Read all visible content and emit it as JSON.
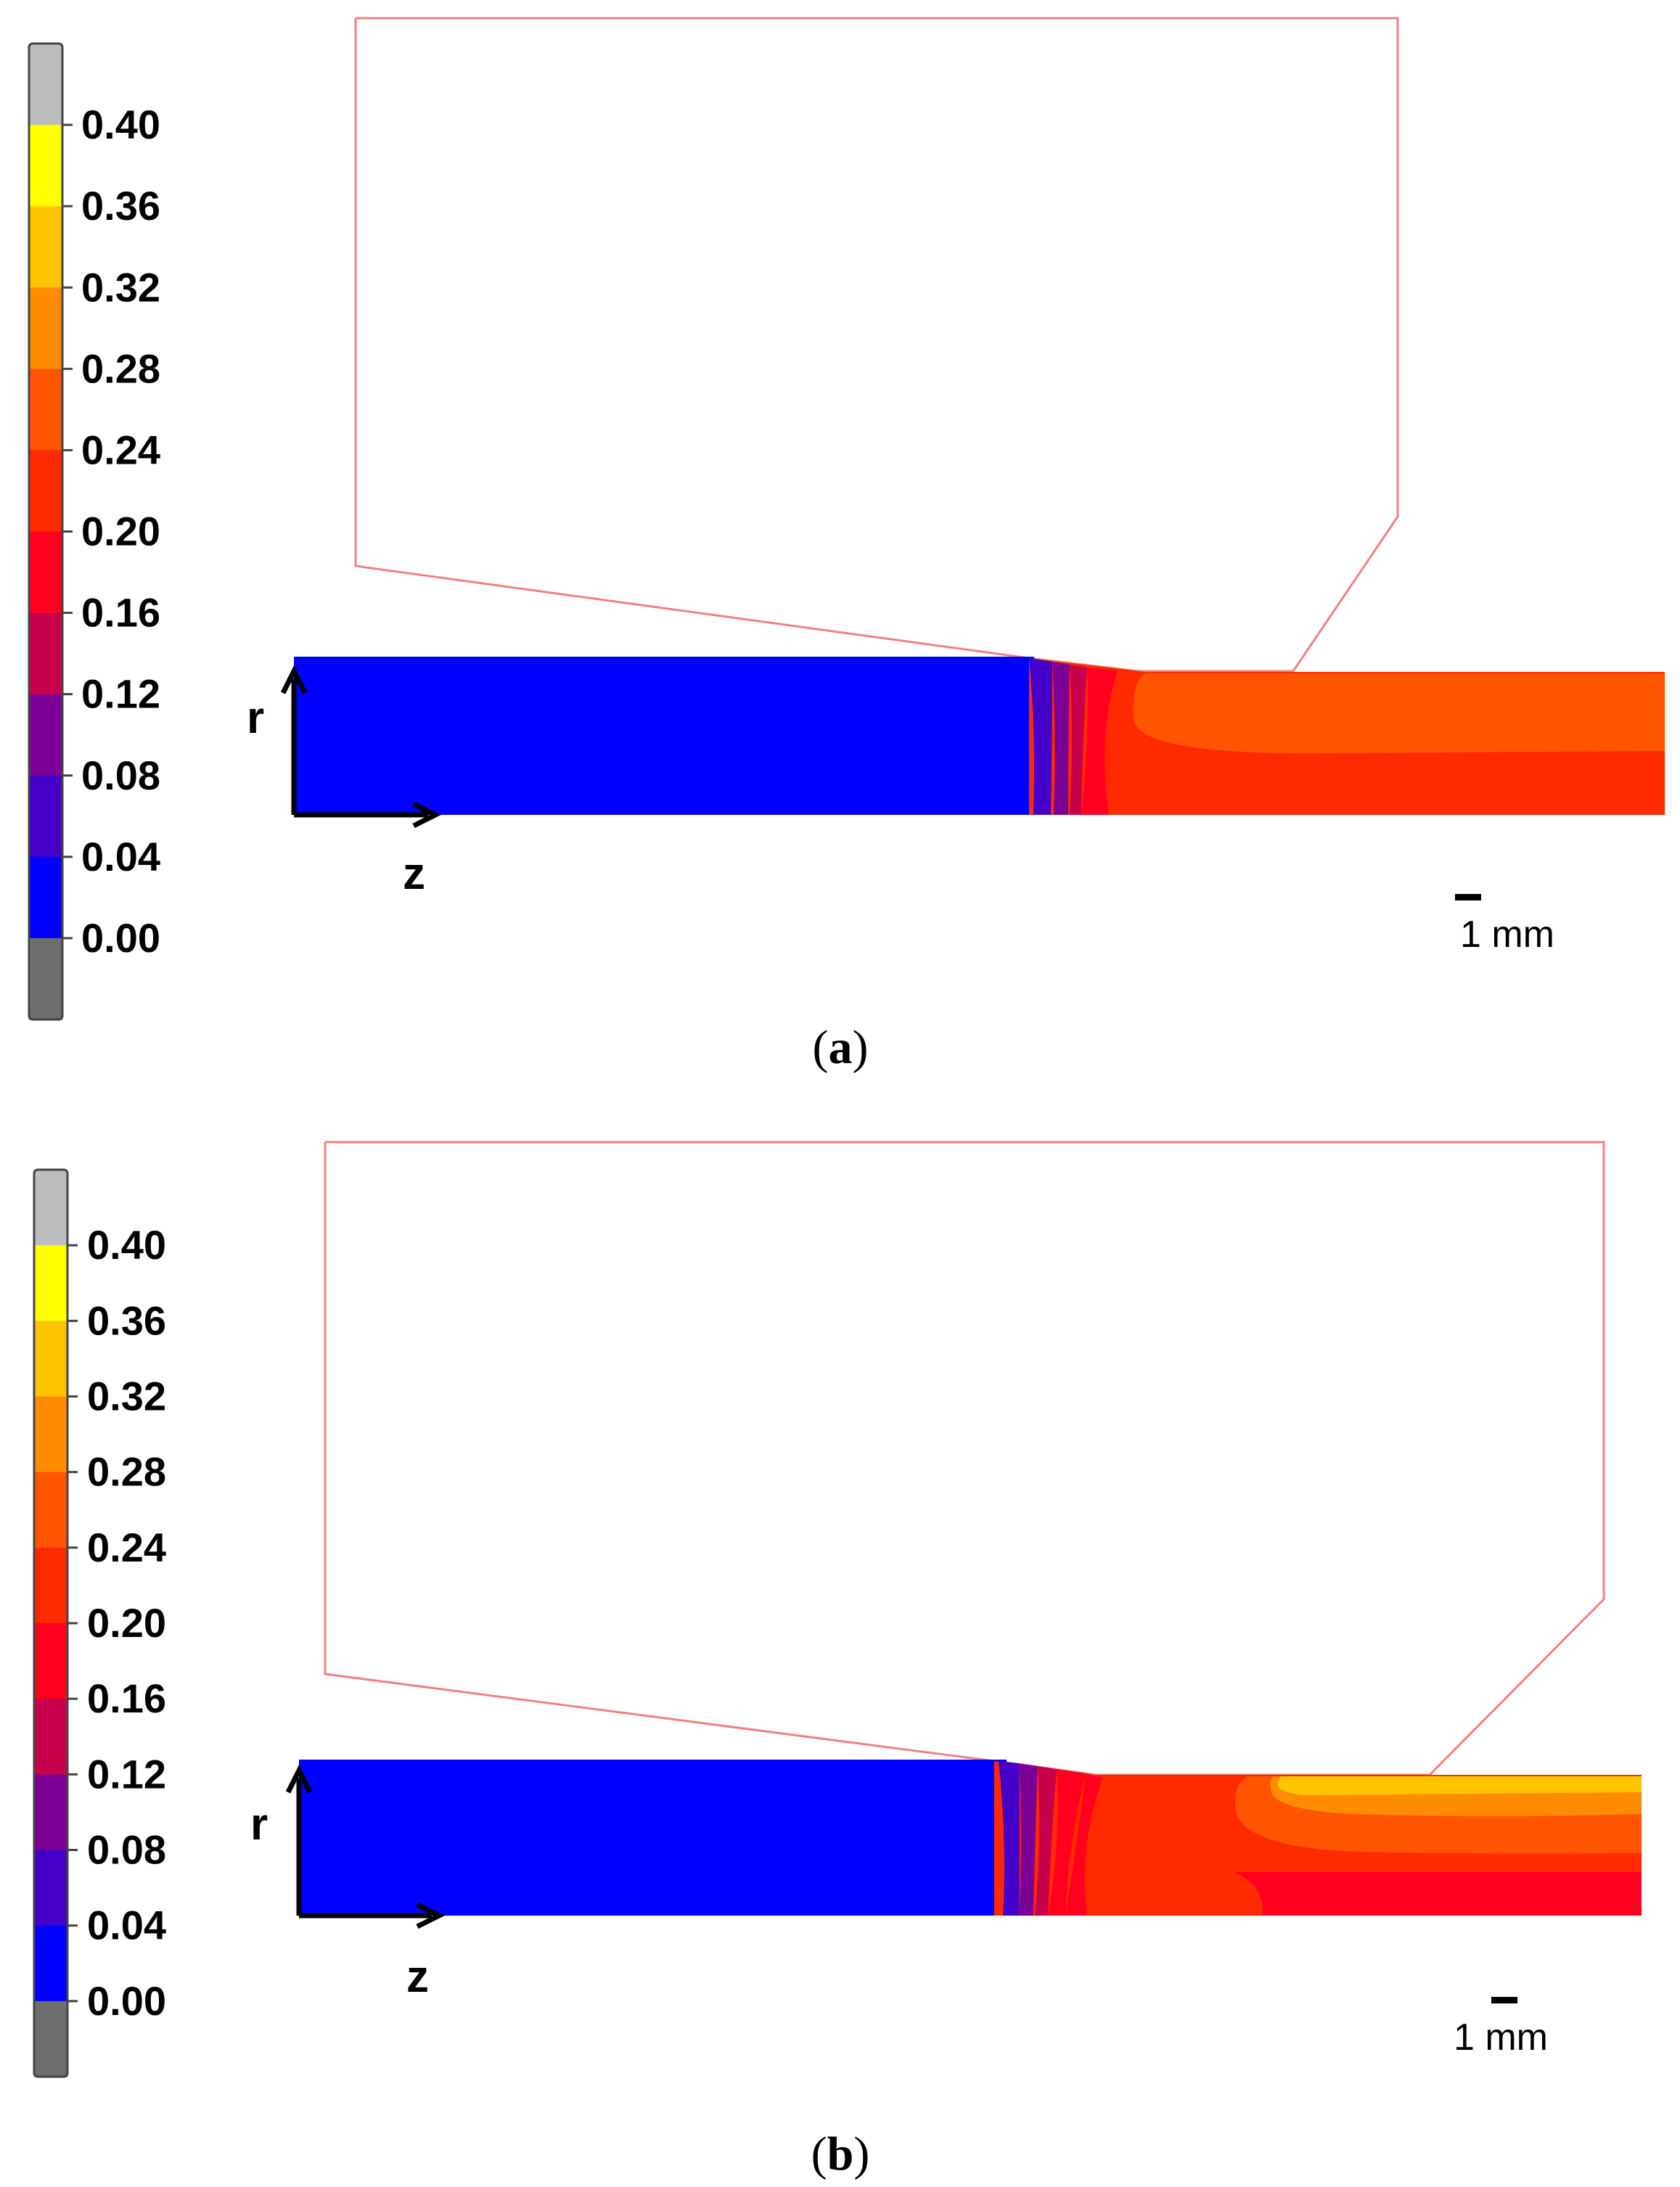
{
  "legend_colors": [
    "#bdbdbd",
    "#ffff00",
    "#ffc400",
    "#ff8c00",
    "#ff5400",
    "#ff2a00",
    "#ff001e",
    "#c8004b",
    "#7a0096",
    "#4400c8",
    "#0000ff",
    "#6e6e6e"
  ],
  "legend_values": [
    "0.40",
    "0.36",
    "0.32",
    "0.28",
    "0.24",
    "0.20",
    "0.16",
    "0.12",
    "0.08",
    "0.04",
    "0.00"
  ],
  "axes": {
    "r": "r",
    "z": "z"
  },
  "scale_bar": "1 mm",
  "panels": [
    {
      "caption_open": "(",
      "caption_letter": "a",
      "caption_close": ")"
    },
    {
      "caption_open": "(",
      "caption_letter": "b",
      "caption_close": ")"
    }
  ]
}
